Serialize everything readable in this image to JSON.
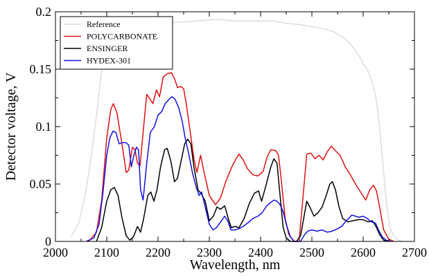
{
  "chart_data": {
    "type": "line",
    "title": "",
    "xlabel": "Wavelength, nm",
    "ylabel": "Detector voltage, V",
    "xlim": [
      2000,
      2700
    ],
    "ylim": [
      0,
      0.2
    ],
    "x_ticks": [
      2000,
      2100,
      2200,
      2300,
      2400,
      2500,
      2600,
      2700
    ],
    "x_tick_labels": [
      "2000",
      "2100",
      "2200",
      "2300",
      "2400",
      "2500",
      "2600",
      "2700"
    ],
    "y_ticks": [
      0,
      0.05,
      0.1,
      0.15,
      0.2
    ],
    "y_tick_labels": [
      "0",
      "0.05",
      "0.1",
      "0.15",
      "0.2"
    ],
    "grid": false,
    "legend_position": "top-left",
    "series": [
      {
        "name": "Reference",
        "color": "#d8d8d8",
        "points": [
          [
            2030,
            0.004
          ],
          [
            2045,
            0.015
          ],
          [
            2060,
            0.045
          ],
          [
            2070,
            0.075
          ],
          [
            2080,
            0.11
          ],
          [
            2090,
            0.148
          ],
          [
            2100,
            0.172
          ],
          [
            2110,
            0.182
          ],
          [
            2130,
            0.187
          ],
          [
            2150,
            0.189
          ],
          [
            2175,
            0.19
          ],
          [
            2200,
            0.191
          ],
          [
            2225,
            0.191
          ],
          [
            2250,
            0.191
          ],
          [
            2275,
            0.192
          ],
          [
            2300,
            0.193
          ],
          [
            2325,
            0.193
          ],
          [
            2350,
            0.192
          ],
          [
            2375,
            0.192
          ],
          [
            2400,
            0.192
          ],
          [
            2425,
            0.192
          ],
          [
            2450,
            0.19
          ],
          [
            2475,
            0.189
          ],
          [
            2500,
            0.187
          ],
          [
            2525,
            0.185
          ],
          [
            2545,
            0.182
          ],
          [
            2560,
            0.178
          ],
          [
            2575,
            0.172
          ],
          [
            2590,
            0.163
          ],
          [
            2600,
            0.155
          ],
          [
            2610,
            0.148
          ],
          [
            2618,
            0.138
          ],
          [
            2625,
            0.125
          ],
          [
            2632,
            0.1
          ],
          [
            2638,
            0.07
          ],
          [
            2645,
            0.035
          ],
          [
            2652,
            0.012
          ],
          [
            2662,
            0.003
          ],
          [
            2675,
            0.0
          ]
        ]
      },
      {
        "name": "POLYCARBONATE",
        "color": "#e01010",
        "points": [
          [
            2065,
            0.0
          ],
          [
            2080,
            0.008
          ],
          [
            2090,
            0.035
          ],
          [
            2100,
            0.09
          ],
          [
            2108,
            0.115
          ],
          [
            2113,
            0.12
          ],
          [
            2120,
            0.112
          ],
          [
            2130,
            0.084
          ],
          [
            2138,
            0.06
          ],
          [
            2143,
            0.062
          ],
          [
            2150,
            0.082
          ],
          [
            2155,
            0.08
          ],
          [
            2160,
            0.068
          ],
          [
            2165,
            0.066
          ],
          [
            2172,
            0.1
          ],
          [
            2178,
            0.128
          ],
          [
            2183,
            0.125
          ],
          [
            2190,
            0.12
          ],
          [
            2197,
            0.132
          ],
          [
            2203,
            0.126
          ],
          [
            2210,
            0.143
          ],
          [
            2218,
            0.146
          ],
          [
            2226,
            0.147
          ],
          [
            2232,
            0.142
          ],
          [
            2238,
            0.134
          ],
          [
            2244,
            0.135
          ],
          [
            2250,
            0.133
          ],
          [
            2255,
            0.12
          ],
          [
            2262,
            0.098
          ],
          [
            2270,
            0.072
          ],
          [
            2276,
            0.06
          ],
          [
            2283,
            0.075
          ],
          [
            2290,
            0.06
          ],
          [
            2300,
            0.04
          ],
          [
            2312,
            0.032
          ],
          [
            2322,
            0.038
          ],
          [
            2332,
            0.052
          ],
          [
            2343,
            0.064
          ],
          [
            2352,
            0.072
          ],
          [
            2358,
            0.076
          ],
          [
            2366,
            0.071
          ],
          [
            2375,
            0.063
          ],
          [
            2385,
            0.058
          ],
          [
            2395,
            0.057
          ],
          [
            2405,
            0.061
          ],
          [
            2413,
            0.074
          ],
          [
            2420,
            0.08
          ],
          [
            2430,
            0.079
          ],
          [
            2435,
            0.075
          ],
          [
            2440,
            0.055
          ],
          [
            2448,
            0.02
          ],
          [
            2455,
            0.006
          ],
          [
            2465,
            0.0
          ],
          [
            2475,
            0.0
          ],
          [
            2483,
            0.04
          ],
          [
            2490,
            0.076
          ],
          [
            2498,
            0.077
          ],
          [
            2506,
            0.072
          ],
          [
            2514,
            0.075
          ],
          [
            2522,
            0.071
          ],
          [
            2530,
            0.078
          ],
          [
            2538,
            0.083
          ],
          [
            2546,
            0.079
          ],
          [
            2555,
            0.075
          ],
          [
            2565,
            0.065
          ],
          [
            2575,
            0.058
          ],
          [
            2585,
            0.05
          ],
          [
            2595,
            0.043
          ],
          [
            2605,
            0.036
          ],
          [
            2613,
            0.045
          ],
          [
            2620,
            0.049
          ],
          [
            2626,
            0.044
          ],
          [
            2632,
            0.03
          ],
          [
            2640,
            0.01
          ],
          [
            2650,
            0.002
          ],
          [
            2660,
            0.0
          ]
        ]
      },
      {
        "name": "ENSINGER",
        "color": "#000000",
        "points": [
          [
            2080,
            0.0
          ],
          [
            2090,
            0.012
          ],
          [
            2100,
            0.035
          ],
          [
            2108,
            0.045
          ],
          [
            2115,
            0.047
          ],
          [
            2122,
            0.04
          ],
          [
            2130,
            0.02
          ],
          [
            2138,
            0.005
          ],
          [
            2145,
            0.001
          ],
          [
            2152,
            0.004
          ],
          [
            2160,
            0.013
          ],
          [
            2166,
            0.008
          ],
          [
            2172,
            0.02
          ],
          [
            2180,
            0.04
          ],
          [
            2186,
            0.043
          ],
          [
            2192,
            0.035
          ],
          [
            2198,
            0.045
          ],
          [
            2205,
            0.065
          ],
          [
            2213,
            0.08
          ],
          [
            2218,
            0.081
          ],
          [
            2225,
            0.07
          ],
          [
            2232,
            0.052
          ],
          [
            2238,
            0.055
          ],
          [
            2245,
            0.07
          ],
          [
            2252,
            0.085
          ],
          [
            2258,
            0.089
          ],
          [
            2264,
            0.085
          ],
          [
            2270,
            0.065
          ],
          [
            2278,
            0.045
          ],
          [
            2285,
            0.041
          ],
          [
            2292,
            0.035
          ],
          [
            2300,
            0.018
          ],
          [
            2308,
            0.022
          ],
          [
            2315,
            0.03
          ],
          [
            2322,
            0.028
          ],
          [
            2330,
            0.031
          ],
          [
            2337,
            0.02
          ],
          [
            2343,
            0.012
          ],
          [
            2350,
            0.013
          ],
          [
            2358,
            0.012
          ],
          [
            2368,
            0.02
          ],
          [
            2378,
            0.033
          ],
          [
            2388,
            0.042
          ],
          [
            2396,
            0.044
          ],
          [
            2402,
            0.035
          ],
          [
            2410,
            0.048
          ],
          [
            2420,
            0.065
          ],
          [
            2426,
            0.072
          ],
          [
            2432,
            0.068
          ],
          [
            2438,
            0.04
          ],
          [
            2444,
            0.012
          ],
          [
            2450,
            0.003
          ],
          [
            2458,
            0.0
          ],
          [
            2470,
            0.0
          ],
          [
            2478,
            0.005
          ],
          [
            2484,
            0.02
          ],
          [
            2490,
            0.035
          ],
          [
            2496,
            0.03
          ],
          [
            2504,
            0.022
          ],
          [
            2512,
            0.025
          ],
          [
            2520,
            0.03
          ],
          [
            2528,
            0.04
          ],
          [
            2535,
            0.05
          ],
          [
            2540,
            0.052
          ],
          [
            2546,
            0.045
          ],
          [
            2553,
            0.03
          ],
          [
            2560,
            0.02
          ],
          [
            2570,
            0.017
          ],
          [
            2580,
            0.018
          ],
          [
            2590,
            0.019
          ],
          [
            2600,
            0.019
          ],
          [
            2610,
            0.017
          ],
          [
            2618,
            0.018
          ],
          [
            2625,
            0.013
          ],
          [
            2632,
            0.006
          ],
          [
            2640,
            0.001
          ],
          [
            2650,
            0.0
          ]
        ]
      },
      {
        "name": "HYDEX-301",
        "color": "#1010e0",
        "points": [
          [
            2060,
            0.0
          ],
          [
            2075,
            0.003
          ],
          [
            2085,
            0.015
          ],
          [
            2092,
            0.04
          ],
          [
            2100,
            0.075
          ],
          [
            2106,
            0.09
          ],
          [
            2112,
            0.096
          ],
          [
            2118,
            0.095
          ],
          [
            2124,
            0.085
          ],
          [
            2130,
            0.086
          ],
          [
            2137,
            0.086
          ],
          [
            2143,
            0.084
          ],
          [
            2148,
            0.065
          ],
          [
            2153,
            0.075
          ],
          [
            2158,
            0.082
          ],
          [
            2162,
            0.08
          ],
          [
            2166,
            0.045
          ],
          [
            2171,
            0.036
          ],
          [
            2178,
            0.068
          ],
          [
            2185,
            0.095
          ],
          [
            2193,
            0.1
          ],
          [
            2200,
            0.11
          ],
          [
            2207,
            0.113
          ],
          [
            2214,
            0.12
          ],
          [
            2222,
            0.124
          ],
          [
            2227,
            0.126
          ],
          [
            2233,
            0.124
          ],
          [
            2240,
            0.117
          ],
          [
            2247,
            0.105
          ],
          [
            2253,
            0.09
          ],
          [
            2260,
            0.076
          ],
          [
            2267,
            0.06
          ],
          [
            2274,
            0.048
          ],
          [
            2280,
            0.04
          ],
          [
            2285,
            0.043
          ],
          [
            2292,
            0.03
          ],
          [
            2300,
            0.015
          ],
          [
            2307,
            0.01
          ],
          [
            2314,
            0.012
          ],
          [
            2322,
            0.017
          ],
          [
            2330,
            0.022
          ],
          [
            2336,
            0.018
          ],
          [
            2342,
            0.01
          ],
          [
            2350,
            0.01
          ],
          [
            2358,
            0.011
          ],
          [
            2366,
            0.013
          ],
          [
            2375,
            0.016
          ],
          [
            2385,
            0.02
          ],
          [
            2395,
            0.022
          ],
          [
            2403,
            0.025
          ],
          [
            2412,
            0.031
          ],
          [
            2420,
            0.034
          ],
          [
            2426,
            0.036
          ],
          [
            2432,
            0.035
          ],
          [
            2438,
            0.032
          ],
          [
            2444,
            0.026
          ],
          [
            2450,
            0.015
          ],
          [
            2458,
            0.004
          ],
          [
            2466,
            0.0
          ],
          [
            2478,
            0.0
          ],
          [
            2486,
            0.006
          ],
          [
            2492,
            0.009
          ],
          [
            2500,
            0.01
          ],
          [
            2510,
            0.009
          ],
          [
            2520,
            0.01
          ],
          [
            2530,
            0.008
          ],
          [
            2540,
            0.009
          ],
          [
            2550,
            0.011
          ],
          [
            2558,
            0.013
          ],
          [
            2565,
            0.017
          ],
          [
            2572,
            0.02
          ],
          [
            2578,
            0.023
          ],
          [
            2585,
            0.022
          ],
          [
            2592,
            0.021
          ],
          [
            2600,
            0.022
          ],
          [
            2608,
            0.02
          ],
          [
            2616,
            0.017
          ],
          [
            2624,
            0.016
          ],
          [
            2630,
            0.01
          ],
          [
            2637,
            0.004
          ],
          [
            2645,
            0.001
          ],
          [
            2655,
            0.0
          ]
        ]
      }
    ]
  }
}
